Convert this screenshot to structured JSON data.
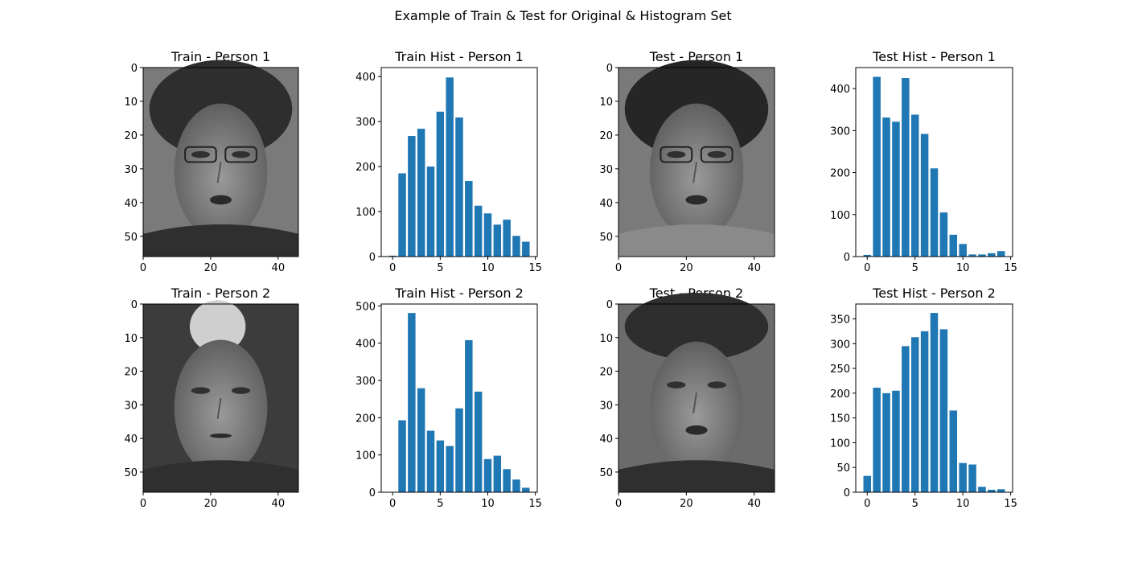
{
  "figure_title": "Example of Train & Test for Original & Histogram Set",
  "chart_data": [
    {
      "type": "image",
      "title": "Train - Person 1",
      "xlim": [
        0,
        46
      ],
      "ylim": [
        56,
        0
      ],
      "xticks": [
        0,
        20,
        40
      ],
      "yticks": [
        0,
        10,
        20,
        30,
        40,
        50
      ],
      "subject": "grayscale face photo of person 1 (train)"
    },
    {
      "type": "bar",
      "title": "Train Hist - Person 1",
      "categories": [
        0,
        1,
        2,
        3,
        4,
        5,
        6,
        7,
        8,
        9,
        10,
        11,
        12,
        13,
        14
      ],
      "values": [
        2,
        185,
        268,
        284,
        200,
        322,
        398,
        309,
        168,
        113,
        96,
        71,
        82,
        46,
        33
      ],
      "xlim": [
        -1.2,
        15.2
      ],
      "ylim": [
        0,
        420
      ],
      "xticks": [
        0,
        5,
        10,
        15
      ],
      "yticks": [
        0,
        100,
        200,
        300,
        400
      ]
    },
    {
      "type": "image",
      "title": "Test - Person 1",
      "xlim": [
        0,
        46
      ],
      "ylim": [
        56,
        0
      ],
      "xticks": [
        0,
        20,
        40
      ],
      "yticks": [
        0,
        10,
        20,
        30,
        40,
        50
      ],
      "subject": "grayscale face photo of person 1 (test)"
    },
    {
      "type": "bar",
      "title": "Test Hist - Person 1",
      "categories": [
        0,
        1,
        2,
        3,
        4,
        5,
        6,
        7,
        8,
        9,
        10,
        11,
        12,
        13,
        14
      ],
      "values": [
        4,
        428,
        331,
        321,
        425,
        338,
        292,
        210,
        105,
        52,
        30,
        5,
        5,
        8,
        13
      ],
      "xlim": [
        -1.2,
        15.2
      ],
      "ylim": [
        0,
        450
      ],
      "xticks": [
        0,
        5,
        10,
        15
      ],
      "yticks": [
        0,
        100,
        200,
        300,
        400
      ]
    },
    {
      "type": "image",
      "title": "Train - Person 2",
      "xlim": [
        0,
        46
      ],
      "ylim": [
        56,
        0
      ],
      "xticks": [
        0,
        20,
        40
      ],
      "yticks": [
        0,
        10,
        20,
        30,
        40,
        50
      ],
      "subject": "grayscale face photo of person 2 (train)"
    },
    {
      "type": "bar",
      "title": "Train Hist - Person 2",
      "categories": [
        0,
        1,
        2,
        3,
        4,
        5,
        6,
        7,
        8,
        9,
        10,
        11,
        12,
        13,
        14
      ],
      "values": [
        0,
        193,
        481,
        279,
        165,
        139,
        124,
        225,
        408,
        270,
        89,
        98,
        62,
        34,
        12
      ],
      "xlim": [
        -1.2,
        15.2
      ],
      "ylim": [
        0,
        505
      ],
      "xticks": [
        0,
        5,
        10,
        15
      ],
      "yticks": [
        0,
        100,
        200,
        300,
        400,
        500
      ]
    },
    {
      "type": "image",
      "title": "Test - Person 2",
      "xlim": [
        0,
        46
      ],
      "ylim": [
        56,
        0
      ],
      "xticks": [
        0,
        20,
        40
      ],
      "yticks": [
        0,
        10,
        20,
        30,
        40,
        50
      ],
      "subject": "grayscale face photo of person 2 (test)"
    },
    {
      "type": "bar",
      "title": "Test Hist - Person 2",
      "categories": [
        0,
        1,
        2,
        3,
        4,
        5,
        6,
        7,
        8,
        9,
        10,
        11,
        12,
        13,
        14
      ],
      "values": [
        33,
        211,
        200,
        205,
        295,
        313,
        325,
        362,
        329,
        165,
        59,
        56,
        11,
        5,
        6
      ],
      "xlim": [
        -1.2,
        15.2
      ],
      "ylim": [
        0,
        380
      ],
      "xticks": [
        0,
        5,
        10,
        15
      ],
      "yticks": [
        0,
        50,
        100,
        150,
        200,
        250,
        300,
        350
      ]
    }
  ],
  "colors": {
    "bar": "#1f77b4",
    "axes": "#000000",
    "background": "#ffffff"
  }
}
